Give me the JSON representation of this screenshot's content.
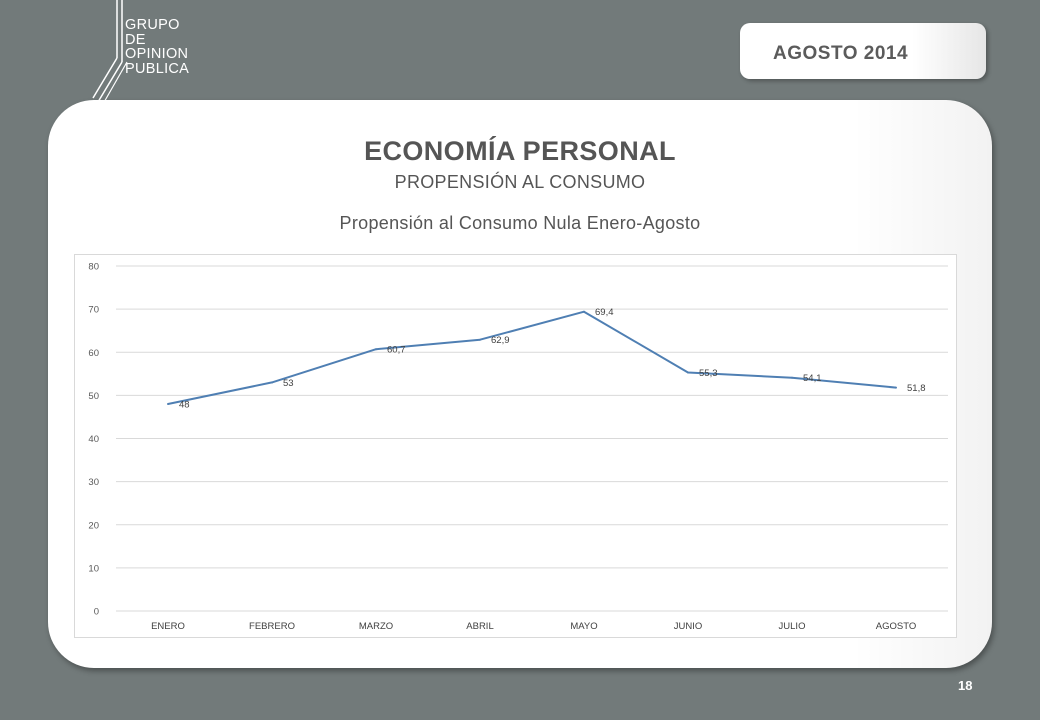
{
  "logo": {
    "lines": [
      "GRUPO",
      "DE",
      "OPINION",
      "PUBLICA"
    ]
  },
  "date_label": "AGOSTO  2014",
  "header": {
    "title": "ECONOMÍA PERSONAL",
    "subtitle": "PROPENSIÓN AL CONSUMO"
  },
  "page_number": "18",
  "colors": {
    "background": "#727a7a",
    "line": "#4f7fb3",
    "grid": "#d9d9d9"
  },
  "chart_data": {
    "type": "line",
    "title": "Propensión al Consumo Nula Enero-Agosto",
    "xlabel": "",
    "ylabel": "",
    "categories": [
      "ENERO",
      "FEBRERO",
      "MARZO",
      "ABRIL",
      "MAYO",
      "JUNIO",
      "JULIO",
      "AGOSTO"
    ],
    "series": [
      {
        "values": [
          48,
          53,
          60.7,
          62.9,
          69.4,
          55.3,
          54.1,
          51.8
        ]
      }
    ],
    "data_labels": [
      "48",
      "53",
      "60,7",
      "62,9",
      "69,4",
      "55,3",
      "54,1",
      "51,8"
    ],
    "ylim": [
      0,
      80
    ],
    "yticks": [
      0,
      10,
      20,
      30,
      40,
      50,
      60,
      70,
      80
    ],
    "grid": true,
    "legend": "none"
  }
}
